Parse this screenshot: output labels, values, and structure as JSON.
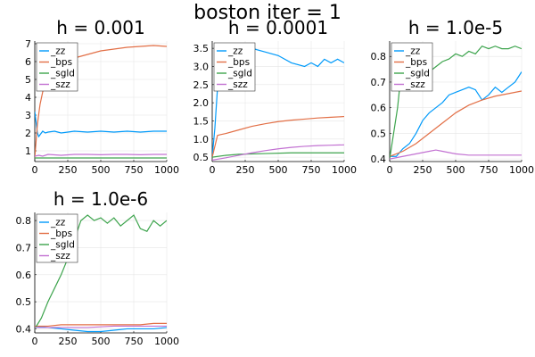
{
  "figure": {
    "title": "boston iter = 1"
  },
  "chart_data": [
    {
      "type": "line",
      "title": "h = 0.001",
      "xlabel": "",
      "ylabel": "",
      "xlim": [
        0,
        1000
      ],
      "ylim": [
        0.4,
        7.15
      ],
      "xticks": [
        0,
        250,
        500,
        750,
        1000
      ],
      "yticks": [
        1,
        2,
        3,
        4,
        5,
        6,
        7
      ],
      "grid": true,
      "legend": "top-left",
      "series": [
        {
          "name": "_zz",
          "color": "#009AFA",
          "x": [
            0,
            10,
            20,
            30,
            40,
            60,
            80,
            100,
            150,
            200,
            300,
            400,
            500,
            600,
            700,
            800,
            900,
            1000
          ],
          "y": [
            3.2,
            2.6,
            2.0,
            1.8,
            1.9,
            2.1,
            2.0,
            2.05,
            2.1,
            2.0,
            2.1,
            2.05,
            2.1,
            2.05,
            2.1,
            2.05,
            2.1,
            2.1
          ]
        },
        {
          "name": "_bps",
          "color": "#E26F46",
          "x": [
            0,
            20,
            40,
            60,
            80,
            100,
            150,
            200,
            300,
            400,
            500,
            600,
            700,
            800,
            900,
            1000
          ],
          "y": [
            0.6,
            2.5,
            3.6,
            4.3,
            4.9,
            5.4,
            5.7,
            5.9,
            6.2,
            6.4,
            6.6,
            6.7,
            6.8,
            6.85,
            6.9,
            6.85
          ]
        },
        {
          "name": "_sgld",
          "color": "#3DA44D",
          "x": [
            0,
            1000
          ],
          "y": [
            0.6,
            0.6
          ]
        },
        {
          "name": "_szz",
          "color": "#C271D2",
          "x": [
            0,
            30,
            60,
            100,
            200,
            300,
            400,
            500,
            600,
            700,
            800,
            900,
            1000
          ],
          "y": [
            0.7,
            0.75,
            0.7,
            0.8,
            0.75,
            0.8,
            0.8,
            0.78,
            0.8,
            0.8,
            0.78,
            0.8,
            0.8
          ]
        }
      ]
    },
    {
      "type": "line",
      "title": "h = 0.0001",
      "xlabel": "",
      "ylabel": "",
      "xlim": [
        0,
        1000
      ],
      "ylim": [
        0.38,
        3.7
      ],
      "xticks": [
        0,
        250,
        500,
        750,
        1000
      ],
      "yticks": [
        0.5,
        1.0,
        1.5,
        2.0,
        2.5,
        3.0,
        3.5
      ],
      "grid": true,
      "legend": "top-left",
      "series": [
        {
          "name": "_zz",
          "color": "#009AFA",
          "x": [
            0,
            20,
            40,
            60,
            80,
            120,
            200,
            300,
            400,
            500,
            600,
            700,
            750,
            800,
            850,
            900,
            950,
            1000
          ],
          "y": [
            0.5,
            1.3,
            2.4,
            3.1,
            3.4,
            3.5,
            3.6,
            3.5,
            3.4,
            3.3,
            3.1,
            3.0,
            3.1,
            3.0,
            3.2,
            3.1,
            3.2,
            3.1
          ]
        },
        {
          "name": "_bps",
          "color": "#E26F46",
          "x": [
            0,
            40,
            60,
            100,
            200,
            300,
            400,
            500,
            600,
            700,
            800,
            900,
            1000
          ],
          "y": [
            0.5,
            1.1,
            1.12,
            1.15,
            1.25,
            1.35,
            1.42,
            1.48,
            1.52,
            1.55,
            1.58,
            1.6,
            1.62
          ]
        },
        {
          "name": "_sgld",
          "color": "#3DA44D",
          "x": [
            0,
            100,
            200,
            400,
            600,
            800,
            1000
          ],
          "y": [
            0.5,
            0.55,
            0.58,
            0.6,
            0.62,
            0.62,
            0.62
          ]
        },
        {
          "name": "_szz",
          "color": "#C271D2",
          "x": [
            0,
            100,
            200,
            300,
            400,
            500,
            600,
            700,
            800,
            900,
            1000
          ],
          "y": [
            0.42,
            0.48,
            0.55,
            0.62,
            0.68,
            0.73,
            0.77,
            0.8,
            0.82,
            0.83,
            0.84
          ]
        }
      ]
    },
    {
      "type": "line",
      "title": "h = 1.0e-5",
      "xlabel": "",
      "ylabel": "",
      "xlim": [
        0,
        1000
      ],
      "ylim": [
        0.39,
        0.86
      ],
      "xticks": [
        0,
        250,
        500,
        750,
        1000
      ],
      "yticks": [
        0.4,
        0.5,
        0.6,
        0.7,
        0.8
      ],
      "grid": true,
      "legend": "top-left",
      "series": [
        {
          "name": "_zz",
          "color": "#009AFA",
          "x": [
            0,
            50,
            100,
            150,
            200,
            250,
            300,
            350,
            400,
            450,
            500,
            550,
            600,
            650,
            700,
            750,
            800,
            850,
            900,
            950,
            1000
          ],
          "y": [
            0.41,
            0.41,
            0.44,
            0.46,
            0.5,
            0.55,
            0.58,
            0.6,
            0.62,
            0.65,
            0.66,
            0.67,
            0.68,
            0.67,
            0.63,
            0.65,
            0.68,
            0.66,
            0.68,
            0.7,
            0.74
          ]
        },
        {
          "name": "_bps",
          "color": "#E26F46",
          "x": [
            0,
            100,
            200,
            300,
            400,
            500,
            600,
            700,
            800,
            900,
            1000
          ],
          "y": [
            0.41,
            0.43,
            0.46,
            0.5,
            0.54,
            0.58,
            0.61,
            0.63,
            0.645,
            0.655,
            0.665
          ]
        },
        {
          "name": "_sgld",
          "color": "#3DA44D",
          "x": [
            0,
            30,
            60,
            80,
            100,
            150,
            200,
            250,
            300,
            350,
            400,
            450,
            500,
            550,
            600,
            650,
            700,
            750,
            800,
            850,
            900,
            950,
            1000
          ],
          "y": [
            0.4,
            0.5,
            0.6,
            0.7,
            0.74,
            0.72,
            0.74,
            0.7,
            0.74,
            0.76,
            0.78,
            0.79,
            0.81,
            0.8,
            0.82,
            0.81,
            0.84,
            0.83,
            0.84,
            0.83,
            0.83,
            0.84,
            0.83
          ]
        },
        {
          "name": "_szz",
          "color": "#C271D2",
          "x": [
            0,
            100,
            200,
            300,
            350,
            400,
            500,
            600,
            700,
            800,
            900,
            1000
          ],
          "y": [
            0.4,
            0.41,
            0.42,
            0.43,
            0.435,
            0.43,
            0.42,
            0.415,
            0.415,
            0.415,
            0.415,
            0.415
          ]
        }
      ]
    },
    {
      "type": "line",
      "title": "h = 1.0e-6",
      "xlabel": "",
      "ylabel": "",
      "xlim": [
        0,
        1000
      ],
      "ylim": [
        0.385,
        0.83
      ],
      "xticks": [
        0,
        250,
        500,
        750,
        1000
      ],
      "yticks": [
        0.4,
        0.5,
        0.6,
        0.7,
        0.8
      ],
      "grid": true,
      "legend": "top-left",
      "series": [
        {
          "name": "_zz",
          "color": "#009AFA",
          "x": [
            0,
            100,
            200,
            300,
            400,
            500,
            600,
            700,
            800,
            900,
            1000
          ],
          "y": [
            0.41,
            0.405,
            0.4,
            0.395,
            0.39,
            0.39,
            0.395,
            0.4,
            0.4,
            0.4,
            0.405
          ]
        },
        {
          "name": "_bps",
          "color": "#E26F46",
          "x": [
            0,
            100,
            200,
            300,
            400,
            500,
            600,
            700,
            800,
            900,
            1000
          ],
          "y": [
            0.41,
            0.41,
            0.415,
            0.415,
            0.415,
            0.415,
            0.415,
            0.415,
            0.415,
            0.42,
            0.42
          ]
        },
        {
          "name": "_sgld",
          "color": "#3DA44D",
          "x": [
            0,
            50,
            100,
            150,
            200,
            250,
            300,
            350,
            400,
            450,
            500,
            550,
            600,
            650,
            700,
            750,
            800,
            850,
            900,
            950,
            1000
          ],
          "y": [
            0.4,
            0.44,
            0.5,
            0.55,
            0.6,
            0.66,
            0.73,
            0.8,
            0.82,
            0.8,
            0.81,
            0.79,
            0.81,
            0.78,
            0.8,
            0.82,
            0.77,
            0.76,
            0.8,
            0.78,
            0.8
          ]
        },
        {
          "name": "_szz",
          "color": "#C271D2",
          "x": [
            0,
            200,
            400,
            600,
            800,
            1000
          ],
          "y": [
            0.405,
            0.405,
            0.405,
            0.41,
            0.41,
            0.41
          ]
        }
      ]
    }
  ]
}
